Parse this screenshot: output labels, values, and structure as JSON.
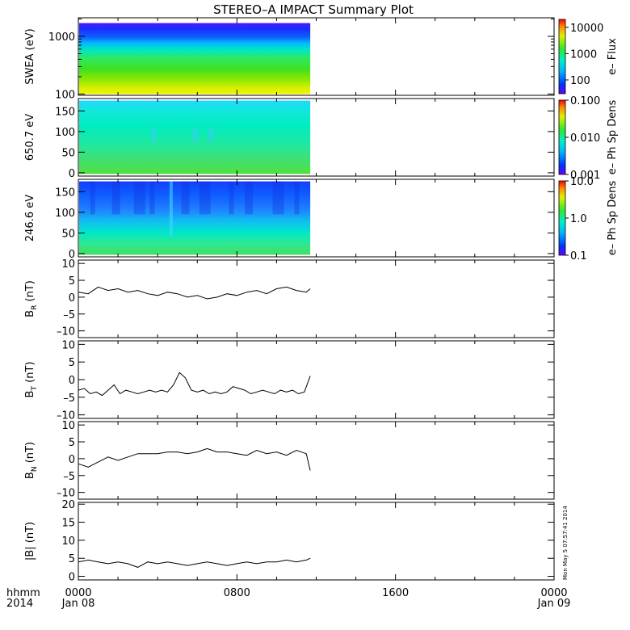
{
  "page": {
    "title": "STEREO–A IMPACT Summary Plot",
    "stamp": "Mon May  5 07:57:41 2014",
    "time_axis": {
      "corner_label_top": "hhmm",
      "corner_label_bottom": "2014",
      "ticks": [
        {
          "t": 0,
          "top": "0000",
          "bottom": "Jan 08"
        },
        {
          "t": 8,
          "top": "0800",
          "bottom": ""
        },
        {
          "t": 16,
          "top": "1600",
          "bottom": ""
        },
        {
          "t": 24,
          "top": "0000",
          "bottom": "Jan 09"
        }
      ],
      "range_hours": [
        0,
        24
      ],
      "data_end_hour": 11.7
    }
  },
  "chart_data": [
    {
      "type": "heatmap",
      "ylabel": "SWEA (eV)",
      "ylog": true,
      "ylim": [
        95,
        2100
      ],
      "yticks": [
        100,
        1000
      ],
      "ytick_labels": [
        "100",
        "1000"
      ],
      "colorbar_label": "e– Flux",
      "colorbar_log": true,
      "colorbar_range": [
        30,
        20000
      ],
      "colorbar_ticks": [
        100,
        1000,
        10000
      ],
      "colorbar_tick_labels": [
        "100",
        "1000",
        "10000"
      ],
      "description_values": {
        "energy_eV": [
          100,
          1700
        ],
        "flux_at_low_energy": 5000,
        "flux_at_high_energy": 40
      }
    },
    {
      "type": "heatmap",
      "ylabel": "650.7 eV",
      "ylim": [
        -8,
        180
      ],
      "yticks": [
        0,
        50,
        100,
        150
      ],
      "ytick_labels": [
        "0",
        "50",
        "100",
        "150"
      ],
      "colorbar_label": "e– Ph Sp Dens",
      "colorbar_log": true,
      "colorbar_range": [
        0.001,
        0.1
      ],
      "colorbar_ticks": [
        0.001,
        0.01,
        0.1
      ],
      "colorbar_tick_labels": [
        "0.001",
        "0.010",
        "0.100"
      ]
    },
    {
      "type": "heatmap",
      "ylabel": "246.6 eV",
      "ylim": [
        -8,
        180
      ],
      "yticks": [
        0,
        50,
        100,
        150
      ],
      "ytick_labels": [
        "0",
        "50",
        "100",
        "150"
      ],
      "colorbar_label": "e– Ph Sp Dens",
      "colorbar_log": true,
      "colorbar_range": [
        0.1,
        10
      ],
      "colorbar_ticks": [
        0.1,
        1,
        10
      ],
      "colorbar_tick_labels": [
        "0.1",
        "1.0",
        "10.0"
      ]
    },
    {
      "type": "line",
      "ylabel_main": "B",
      "ylabel_sub": "R",
      "ylabel_unit": " (nT)",
      "ylim": [
        -12,
        11
      ],
      "yticks": [
        -10,
        -5,
        0,
        5,
        10
      ],
      "ytick_labels": [
        "–10",
        "–5",
        "0",
        "5",
        "10"
      ],
      "x": [
        0.0,
        0.5,
        1.0,
        1.5,
        2.0,
        2.5,
        3.0,
        3.5,
        4.0,
        4.5,
        5.0,
        5.5,
        6.0,
        6.5,
        7.0,
        7.5,
        8.0,
        8.5,
        9.0,
        9.5,
        10.0,
        10.5,
        11.0,
        11.5,
        11.7
      ],
      "y": [
        1.5,
        1.0,
        3.0,
        2.0,
        2.5,
        1.5,
        2.0,
        1.0,
        0.5,
        1.5,
        1.0,
        0.0,
        0.5,
        -0.5,
        0.0,
        1.0,
        0.5,
        1.5,
        2.0,
        1.0,
        2.5,
        3.0,
        2.0,
        1.5,
        2.5
      ]
    },
    {
      "type": "line",
      "ylabel_main": "B",
      "ylabel_sub": "T",
      "ylabel_unit": " (nT)",
      "ylim": [
        -11,
        11
      ],
      "yticks": [
        -10,
        -5,
        0,
        5,
        10
      ],
      "ytick_labels": [
        "–10",
        "–5",
        "0",
        "5",
        "10"
      ],
      "x": [
        0.0,
        0.3,
        0.6,
        0.9,
        1.2,
        1.5,
        1.8,
        2.1,
        2.4,
        2.7,
        3.0,
        3.3,
        3.6,
        3.9,
        4.2,
        4.5,
        4.8,
        5.1,
        5.4,
        5.7,
        6.0,
        6.3,
        6.6,
        6.9,
        7.2,
        7.5,
        7.8,
        8.1,
        8.4,
        8.7,
        9.0,
        9.3,
        9.6,
        9.9,
        10.2,
        10.5,
        10.8,
        11.1,
        11.4,
        11.7
      ],
      "y": [
        -3.0,
        -2.5,
        -4.0,
        -3.5,
        -4.5,
        -3.0,
        -1.5,
        -4.0,
        -3.0,
        -3.5,
        -4.0,
        -3.5,
        -3.0,
        -3.5,
        -3.0,
        -3.5,
        -1.5,
        2.0,
        0.5,
        -3.0,
        -3.5,
        -3.0,
        -4.0,
        -3.5,
        -4.0,
        -3.5,
        -2.0,
        -2.5,
        -3.0,
        -4.0,
        -3.5,
        -3.0,
        -3.5,
        -4.0,
        -3.0,
        -3.5,
        -3.0,
        -4.0,
        -3.5,
        1.0
      ]
    },
    {
      "type": "line",
      "ylabel_main": "B",
      "ylabel_sub": "N",
      "ylabel_unit": " (nT)",
      "ylim": [
        -12,
        11
      ],
      "yticks": [
        -10,
        -5,
        0,
        5,
        10
      ],
      "ytick_labels": [
        "–10",
        "–5",
        "0",
        "5",
        "10"
      ],
      "x": [
        0.0,
        0.5,
        1.0,
        1.5,
        2.0,
        2.5,
        3.0,
        3.5,
        4.0,
        4.5,
        5.0,
        5.5,
        6.0,
        6.5,
        7.0,
        7.5,
        8.0,
        8.5,
        9.0,
        9.5,
        10.0,
        10.5,
        11.0,
        11.5,
        11.7
      ],
      "y": [
        -1.5,
        -2.5,
        -1.0,
        0.5,
        -0.5,
        0.5,
        1.5,
        1.5,
        1.5,
        2.0,
        2.0,
        1.5,
        2.0,
        3.0,
        2.0,
        2.0,
        1.5,
        1.0,
        2.5,
        1.5,
        2.0,
        1.0,
        2.5,
        1.5,
        -3.5
      ]
    },
    {
      "type": "line",
      "ylabel": "|B| (nT)",
      "ylim": [
        -1,
        20.5
      ],
      "yticks": [
        0,
        5,
        10,
        15,
        20
      ],
      "ytick_labels": [
        "0",
        "5",
        "10",
        "15",
        "20"
      ],
      "x": [
        0.0,
        0.5,
        1.0,
        1.5,
        2.0,
        2.5,
        3.0,
        3.5,
        4.0,
        4.5,
        5.0,
        5.5,
        6.0,
        6.5,
        7.0,
        7.5,
        8.0,
        8.5,
        9.0,
        9.5,
        10.0,
        10.5,
        11.0,
        11.5,
        11.7
      ],
      "y": [
        4.0,
        4.5,
        4.0,
        3.5,
        4.0,
        3.5,
        2.5,
        4.0,
        3.5,
        4.0,
        3.5,
        3.0,
        3.5,
        4.0,
        3.5,
        3.0,
        3.5,
        4.0,
        3.5,
        4.0,
        4.0,
        4.5,
        4.0,
        4.5,
        5.0
      ]
    }
  ]
}
